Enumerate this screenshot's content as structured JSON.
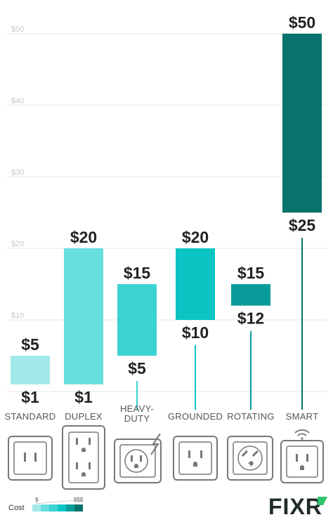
{
  "chart_data": {
    "type": "range-bar",
    "title": "",
    "xlabel": "",
    "ylabel": "",
    "ylim": [
      0,
      50
    ],
    "yticks": [
      10,
      20,
      30,
      40,
      50
    ],
    "ytick_labels": [
      "$10",
      "$20",
      "$30",
      "$40",
      "$50"
    ],
    "grid": true,
    "categories": [
      "STANDARD",
      "DUPLEX",
      "HEAVY-DUTY",
      "GROUNDED",
      "ROTATING",
      "SMART"
    ],
    "category_label_lines": [
      [
        "STANDARD"
      ],
      [
        "DUPLEX"
      ],
      [
        "HEAVY-",
        "DUTY"
      ],
      [
        "GROUNDED"
      ],
      [
        "ROTATING"
      ],
      [
        "SMART"
      ]
    ],
    "low": [
      1,
      1,
      5,
      10,
      12,
      25
    ],
    "high": [
      5,
      20,
      15,
      20,
      15,
      50
    ],
    "low_labels": [
      "$1",
      "$1",
      "$5",
      "$10",
      "$12",
      "$25"
    ],
    "high_labels": [
      "$5",
      "$20",
      "$15",
      "$20",
      "$15",
      "$50"
    ],
    "colors": [
      "#a2e8e8",
      "#69dede",
      "#3cd3d3",
      "#0bc4c4",
      "#0a9c9c",
      "#08736c"
    ],
    "icons": [
      "standard-outlet-icon",
      "duplex-outlet-icon",
      "heavy-duty-outlet-icon",
      "grounded-outlet-icon",
      "rotating-outlet-icon",
      "smart-outlet-icon"
    ]
  },
  "legend": {
    "label": "Cost",
    "low": "$",
    "high": "$$$",
    "colors": [
      "#a2e8e8",
      "#69dede",
      "#3cd3d3",
      "#0bc4c4",
      "#0a9c9c",
      "#08736c"
    ]
  },
  "brand": {
    "name": "FIXR",
    "color": "#1f2a2a",
    "accent": "#2cc36b"
  }
}
